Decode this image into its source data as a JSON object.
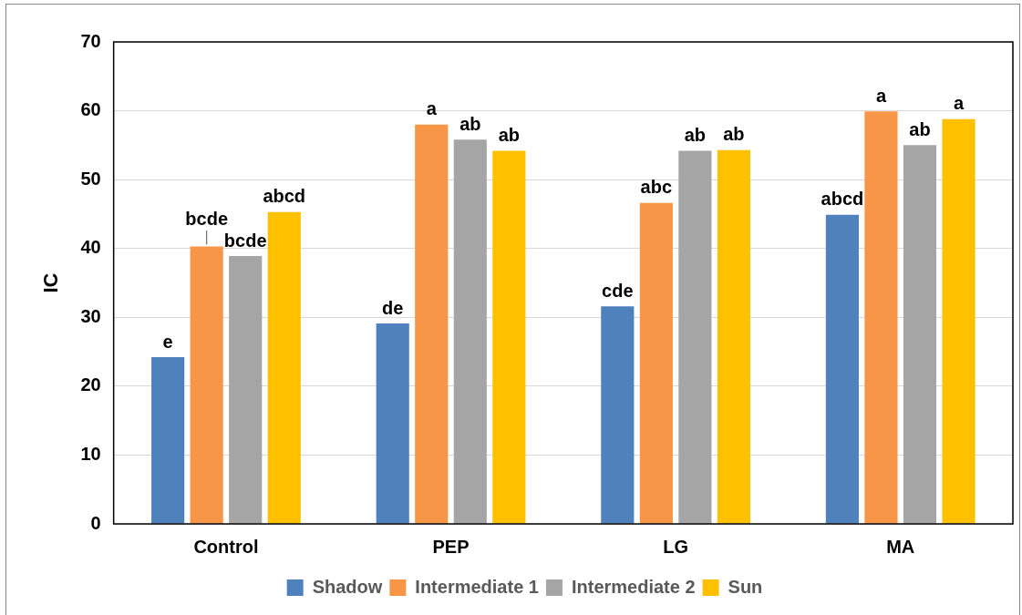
{
  "chart_data": {
    "type": "bar",
    "ylabel": "IC",
    "categories": [
      "Control",
      "PEP",
      "LG",
      "MA"
    ],
    "series": [
      {
        "name": "Shadow",
        "color": "#4f81bd",
        "values": [
          24.2,
          29.1,
          31.6,
          44.9
        ],
        "value_labels": [
          "e",
          "de",
          "cde",
          "abcd"
        ]
      },
      {
        "name": "Intermediate 1",
        "color": "#f79646",
        "values": [
          40.3,
          58.0,
          46.6,
          59.9
        ],
        "value_labels": [
          "bcde",
          "a",
          "abc",
          "a"
        ]
      },
      {
        "name": "Intermediate 2",
        "color": "#a5a5a5",
        "values": [
          38.9,
          55.8,
          54.2,
          55.0
        ],
        "value_labels": [
          "bcde",
          "ab",
          "ab",
          "ab"
        ]
      },
      {
        "name": "Sun",
        "color": "#ffc000",
        "values": [
          45.3,
          54.2,
          54.3,
          58.8
        ],
        "value_labels": [
          "abcd",
          "ab",
          "ab",
          "a"
        ]
      }
    ],
    "ylim": [
      0,
      70
    ],
    "yticks": [
      0,
      10,
      20,
      30,
      40,
      50,
      60,
      70
    ],
    "grid": "y",
    "legend": "bottom"
  }
}
